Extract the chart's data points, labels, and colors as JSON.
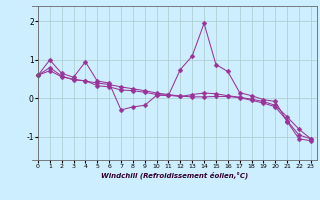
{
  "xlabel": "Windchill (Refroidissement éolien,°C)",
  "background_color": "#cceeff",
  "line_color": "#993399",
  "xlim": [
    -0.5,
    23.5
  ],
  "ylim": [
    -1.6,
    2.4
  ],
  "yticks": [
    -1,
    0,
    1,
    2
  ],
  "xticks": [
    0,
    1,
    2,
    3,
    4,
    5,
    6,
    7,
    8,
    9,
    10,
    11,
    12,
    13,
    14,
    15,
    16,
    17,
    18,
    19,
    20,
    21,
    22,
    23
  ],
  "series1_x": [
    0,
    1,
    2,
    3,
    4,
    5,
    6,
    7,
    8,
    9,
    10,
    11,
    12,
    13,
    14,
    15,
    16,
    17,
    18,
    19,
    20,
    21,
    22,
    23
  ],
  "series1_y": [
    0.6,
    1.0,
    0.65,
    0.55,
    0.95,
    0.45,
    0.4,
    -0.3,
    -0.22,
    -0.18,
    0.08,
    0.08,
    0.75,
    1.1,
    1.95,
    0.88,
    0.7,
    0.15,
    0.07,
    -0.03,
    -0.08,
    -0.6,
    -1.05,
    -1.1
  ],
  "series2_x": [
    0,
    1,
    2,
    3,
    4,
    5,
    6,
    7,
    8,
    9,
    10,
    11,
    12,
    13,
    14,
    15,
    16,
    17,
    18,
    19,
    20,
    21,
    22,
    23
  ],
  "series2_y": [
    0.6,
    0.72,
    0.56,
    0.5,
    0.45,
    0.4,
    0.36,
    0.3,
    0.25,
    0.2,
    0.14,
    0.1,
    0.06,
    0.04,
    0.04,
    0.05,
    0.05,
    0.02,
    -0.05,
    -0.12,
    -0.22,
    -0.58,
    -0.95,
    -1.05
  ],
  "series3_x": [
    0,
    1,
    2,
    3,
    4,
    5,
    6,
    7,
    8,
    9,
    10,
    11,
    12,
    13,
    14,
    15,
    16,
    17,
    18,
    19,
    20,
    21,
    22,
    23
  ],
  "series3_y": [
    0.6,
    0.8,
    0.58,
    0.48,
    0.46,
    0.33,
    0.3,
    0.22,
    0.2,
    0.16,
    0.1,
    0.08,
    0.05,
    0.1,
    0.14,
    0.12,
    0.07,
    0.03,
    -0.02,
    -0.08,
    -0.18,
    -0.48,
    -0.8,
    -1.05
  ],
  "grid_color": "#aacccc",
  "marker": "D",
  "markersize": 2.5,
  "linewidth": 0.75
}
